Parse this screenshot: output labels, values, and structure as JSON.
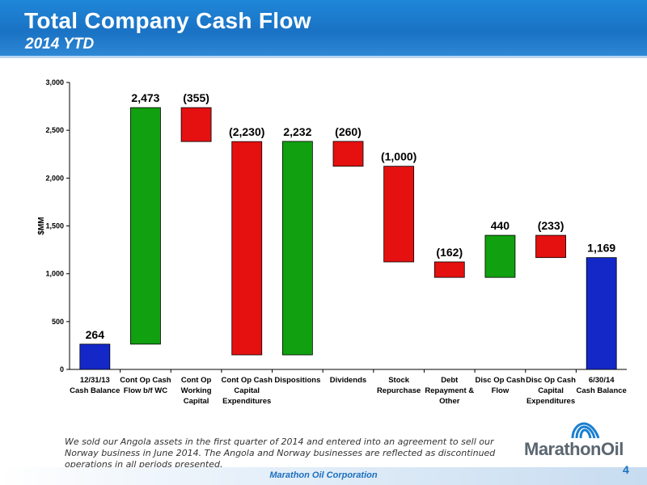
{
  "title": "Total Company Cash Flow",
  "subtitle": "2014 YTD",
  "footnote": "We sold our Angola assets in the first quarter of 2014 and entered into an agreement to sell our Norway business in June 2014. The Angola and Norway businesses are reflected as discontinued operations in all periods presented.",
  "logo_text": "MarathonOil",
  "footer": "Marathon Oil Corporation",
  "page_number": "4",
  "colors": {
    "increase": "#10a010",
    "decrease": "#e51010",
    "total": "#1428c8"
  },
  "chart_data": {
    "type": "bar",
    "subtype": "waterfall",
    "ylabel": "$MM",
    "ylim": [
      0,
      3000
    ],
    "yticks": [
      0,
      500,
      1000,
      1500,
      2000,
      2500,
      3000
    ],
    "ytick_labels": [
      "0",
      "500",
      "1,000",
      "1,500",
      "2,000",
      "2,500",
      "3,000"
    ],
    "grid": false,
    "legend": "none",
    "steps": [
      {
        "lines": [
          "12/31/13",
          "Cash Balance"
        ],
        "kind": "total",
        "value": 264,
        "label": "264"
      },
      {
        "lines": [
          "Cont Op Cash",
          "Flow b/f WC"
        ],
        "kind": "increase",
        "value": 2473,
        "label": "2,473"
      },
      {
        "lines": [
          "Cont Op",
          "Working",
          "Capital"
        ],
        "kind": "decrease",
        "value": -355,
        "label": "(355)"
      },
      {
        "lines": [
          "Cont Op Cash",
          "Capital",
          "Expenditures"
        ],
        "kind": "decrease",
        "value": -2230,
        "label": "(2,230)"
      },
      {
        "lines": [
          "Dispositions"
        ],
        "kind": "increase",
        "value": 2232,
        "label": "2,232"
      },
      {
        "lines": [
          "Dividends"
        ],
        "kind": "decrease",
        "value": -260,
        "label": "(260)"
      },
      {
        "lines": [
          "Stock",
          "Repurchase"
        ],
        "kind": "decrease",
        "value": -1000,
        "label": "(1,000)"
      },
      {
        "lines": [
          "Debt",
          "Repayment &",
          "Other"
        ],
        "kind": "decrease",
        "value": -162,
        "label": "(162)"
      },
      {
        "lines": [
          "Disc Op Cash",
          "Flow"
        ],
        "kind": "increase",
        "value": 440,
        "label": "440"
      },
      {
        "lines": [
          "Disc Op Cash",
          "Capital",
          "Expenditures"
        ],
        "kind": "decrease",
        "value": -233,
        "label": "(233)"
      },
      {
        "lines": [
          "6/30/14",
          "Cash Balance"
        ],
        "kind": "total",
        "value": 1169,
        "label": "1,169"
      }
    ]
  }
}
